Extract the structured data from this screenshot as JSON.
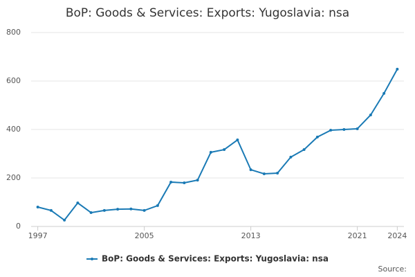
{
  "chart_data": {
    "type": "line",
    "title": "BoP: Goods & Services: Exports: Yugoslavia: nsa",
    "x": [
      1997,
      1998,
      1999,
      2000,
      2001,
      2002,
      2003,
      2004,
      2005,
      2006,
      2007,
      2008,
      2009,
      2010,
      2011,
      2012,
      2013,
      2014,
      2015,
      2016,
      2017,
      2018,
      2019,
      2020,
      2021,
      2022,
      2023,
      2024
    ],
    "series": [
      {
        "name": "BoP: Goods & Services: Exports: Yugoslavia: nsa",
        "color": "#1a7ab5",
        "values": [
          80,
          66,
          26,
          97,
          57,
          66,
          71,
          72,
          66,
          86,
          183,
          180,
          191,
          306,
          317,
          357,
          234,
          217,
          220,
          286,
          317,
          369,
          397,
          400,
          403,
          460,
          549,
          649
        ]
      }
    ],
    "xlim": [
      1996.5,
      2024.5
    ],
    "xticks": [
      1997,
      2005,
      2013,
      2021,
      2024
    ],
    "ylim": [
      0,
      800
    ],
    "yticks": [
      0,
      200,
      400,
      600,
      800
    ],
    "grid": true,
    "legend": "bottom",
    "source": "Source:"
  }
}
